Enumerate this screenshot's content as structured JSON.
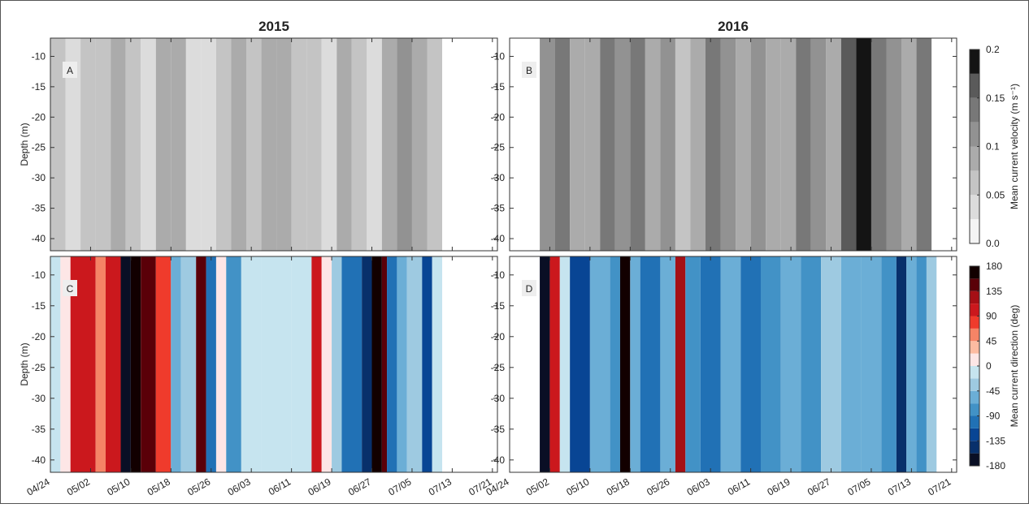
{
  "chart_data": {
    "type": "contour",
    "xlim": [
      0,
      89
    ],
    "xticks": [
      {
        "value": 0,
        "label": "04/24"
      },
      {
        "value": 8,
        "label": "05/02"
      },
      {
        "value": 16,
        "label": "05/10"
      },
      {
        "value": 24,
        "label": "05/18"
      },
      {
        "value": 32,
        "label": "05/26"
      },
      {
        "value": 40,
        "label": "06/03"
      },
      {
        "value": 48,
        "label": "06/11"
      },
      {
        "value": 56,
        "label": "06/19"
      },
      {
        "value": 64,
        "label": "06/27"
      },
      {
        "value": 72,
        "label": "07/05"
      },
      {
        "value": 80,
        "label": "07/13"
      },
      {
        "value": 88,
        "label": "07/21"
      }
    ],
    "ylim": [
      -42,
      -7
    ],
    "yticks": [
      -40,
      -35,
      -30,
      -25,
      -20,
      -15,
      -10
    ],
    "ylabel": "Depth (m)",
    "panels": [
      {
        "title": "2015",
        "panel_label": "A",
        "colorbar": 0,
        "bins": [
          0,
          3,
          6,
          9,
          12,
          15,
          18,
          21,
          24,
          27,
          30,
          33,
          36,
          39,
          42,
          45,
          48,
          51,
          54,
          57,
          60,
          63,
          66,
          69,
          72,
          75,
          78
        ],
        "values": [
          0.06,
          0.04,
          0.07,
          0.06,
          0.08,
          0.07,
          0.05,
          0.09,
          0.08,
          0.05,
          0.05,
          0.06,
          0.08,
          0.06,
          0.09,
          0.08,
          0.07,
          0.06,
          0.05,
          0.08,
          0.06,
          0.05,
          0.1,
          0.11,
          0.09,
          0.07
        ]
      },
      {
        "title": "2016",
        "panel_label": "B",
        "colorbar": 0,
        "bins": [
          6,
          9,
          12,
          15,
          18,
          21,
          24,
          27,
          30,
          33,
          36,
          39,
          42,
          45,
          48,
          51,
          54,
          57,
          60,
          63,
          66,
          69,
          72,
          75,
          78,
          81,
          84
        ],
        "values": [
          0.12,
          0.14,
          0.1,
          0.08,
          0.13,
          0.11,
          0.15,
          0.09,
          0.12,
          0.07,
          0.1,
          0.13,
          0.11,
          0.09,
          0.12,
          0.1,
          0.08,
          0.13,
          0.11,
          0.1,
          0.16,
          0.18,
          0.14,
          0.11,
          0.09,
          0.15
        ]
      },
      {
        "panel_label": "C",
        "colorbar": 1,
        "bins": [
          0,
          2,
          4,
          9,
          11,
          14,
          16,
          18,
          21,
          24,
          26,
          29,
          31,
          33,
          35,
          38,
          42,
          48,
          52,
          54,
          56,
          58,
          62,
          64,
          66,
          67,
          69,
          71,
          74,
          76,
          78
        ],
        "values": [
          -20,
          10,
          110,
          60,
          100,
          -160,
          170,
          150,
          70,
          -60,
          -30,
          140,
          -100,
          20,
          -70,
          -20,
          -20,
          -10,
          110,
          10,
          -40,
          -110,
          -140,
          160,
          150,
          -110,
          -60,
          -30,
          -130,
          -10
        ]
      },
      {
        "panel_label": "D",
        "colorbar": 1,
        "bins": [
          6,
          8,
          10,
          12,
          16,
          20,
          22,
          24,
          26,
          30,
          33,
          35,
          38,
          42,
          46,
          50,
          54,
          58,
          62,
          66,
          70,
          74,
          77,
          79,
          81,
          83,
          85
        ],
        "values": [
          -160,
          100,
          -20,
          -130,
          -60,
          -80,
          160,
          -60,
          -100,
          -60,
          120,
          -70,
          -90,
          -60,
          -110,
          -70,
          -50,
          -80,
          -40,
          -60,
          -50,
          -70,
          -150,
          -60,
          -80,
          -30
        ]
      }
    ],
    "colorbars": [
      {
        "label": "Mean current velocity (m s⁻¹)",
        "levels": [
          0,
          0.025,
          0.05,
          0.075,
          0.1,
          0.125,
          0.15,
          0.175,
          0.2
        ],
        "colors": [
          "#f4f4f4",
          "#dcdcdc",
          "#c4c4c4",
          "#ababab",
          "#929292",
          "#787878",
          "#5a5a5a",
          "#141414"
        ],
        "ticks": [
          {
            "value": 0,
            "label": "0.0"
          },
          0.05,
          0.1,
          0.15,
          0.2
        ]
      },
      {
        "label": "Mean current direction (deg)",
        "levels": [
          -180,
          -157.5,
          -135,
          -112.5,
          -90,
          -67.5,
          -45,
          -22.5,
          0,
          22.5,
          45,
          67.5,
          90,
          112.5,
          135,
          157.5,
          180
        ],
        "colors": [
          "#0a0f25",
          "#08306b",
          "#084594",
          "#2171b5",
          "#4292c6",
          "#6baed6",
          "#9ecae1",
          "#c6e4ef",
          "#fde6e6",
          "#fcbba1",
          "#f58466",
          "#ef3b2c",
          "#cb181d",
          "#a50f15",
          "#5a0008",
          "#120000"
        ],
        "ticks": [
          -180,
          -135,
          -90,
          -45,
          0,
          45,
          90,
          135,
          180
        ]
      }
    ]
  }
}
